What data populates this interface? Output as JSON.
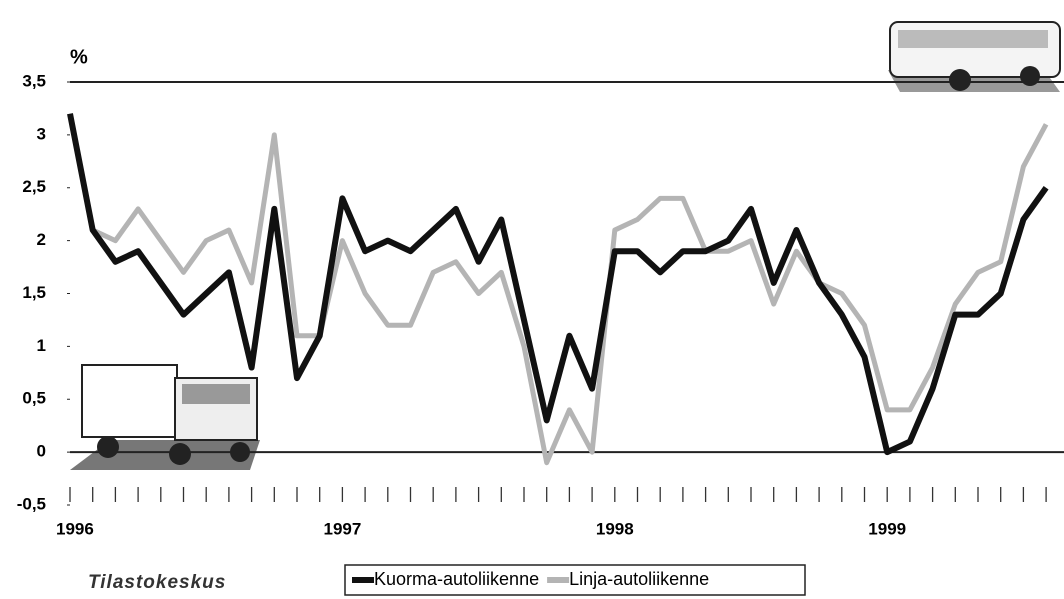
{
  "chart_data": {
    "type": "line",
    "y_label": "%",
    "logo": "Tilastokeskus",
    "categories": [
      "1996",
      null,
      null,
      null,
      null,
      null,
      null,
      null,
      null,
      null,
      null,
      null,
      "1997",
      null,
      null,
      null,
      null,
      null,
      null,
      null,
      null,
      null,
      null,
      null,
      "1998",
      null,
      null,
      null,
      null,
      null,
      null,
      null,
      null,
      null,
      null,
      null,
      "1999",
      null,
      null,
      null,
      null,
      null,
      null,
      null
    ],
    "series": [
      {
        "name": "Kuorma-autoliikenne",
        "color": "#111111",
        "values": [
          3.2,
          2.1,
          1.8,
          1.9,
          1.6,
          1.3,
          1.5,
          1.7,
          0.8,
          2.3,
          0.7,
          1.1,
          2.4,
          1.9,
          2.0,
          1.9,
          2.1,
          2.3,
          1.8,
          2.2,
          1.25,
          0.3,
          1.1,
          0.6,
          1.9,
          1.9,
          1.7,
          1.9,
          1.9,
          2.0,
          2.3,
          1.6,
          2.1,
          1.6,
          1.3,
          0.9,
          0.0,
          0.1,
          0.6,
          1.3,
          1.3,
          1.5,
          2.2,
          2.5
        ]
      },
      {
        "name": "Linja-autoliikenne",
        "color": "#b4b4b4",
        "values": [
          3.2,
          2.1,
          2.0,
          2.3,
          2.0,
          1.7,
          2.0,
          2.1,
          1.6,
          3.0,
          1.1,
          1.1,
          2.0,
          1.5,
          1.2,
          1.2,
          1.7,
          1.8,
          1.5,
          1.7,
          1.0,
          -0.1,
          0.4,
          0.0,
          2.1,
          2.2,
          2.4,
          2.4,
          1.9,
          1.9,
          2.0,
          1.4,
          1.9,
          1.6,
          1.5,
          1.2,
          0.4,
          0.4,
          0.8,
          1.4,
          1.7,
          1.8,
          2.7,
          3.1
        ]
      }
    ],
    "ylim": [
      -0.5,
      3.5
    ],
    "yticks": [
      {
        "value": -0.5,
        "label": "-0,5"
      },
      0,
      {
        "value": 0.5,
        "label": "0,5"
      },
      1,
      {
        "value": 1.5,
        "label": "1,5"
      },
      2,
      {
        "value": 2.5,
        "label": "2,5"
      },
      3,
      {
        "value": 3.5,
        "label": "3,5"
      }
    ]
  }
}
